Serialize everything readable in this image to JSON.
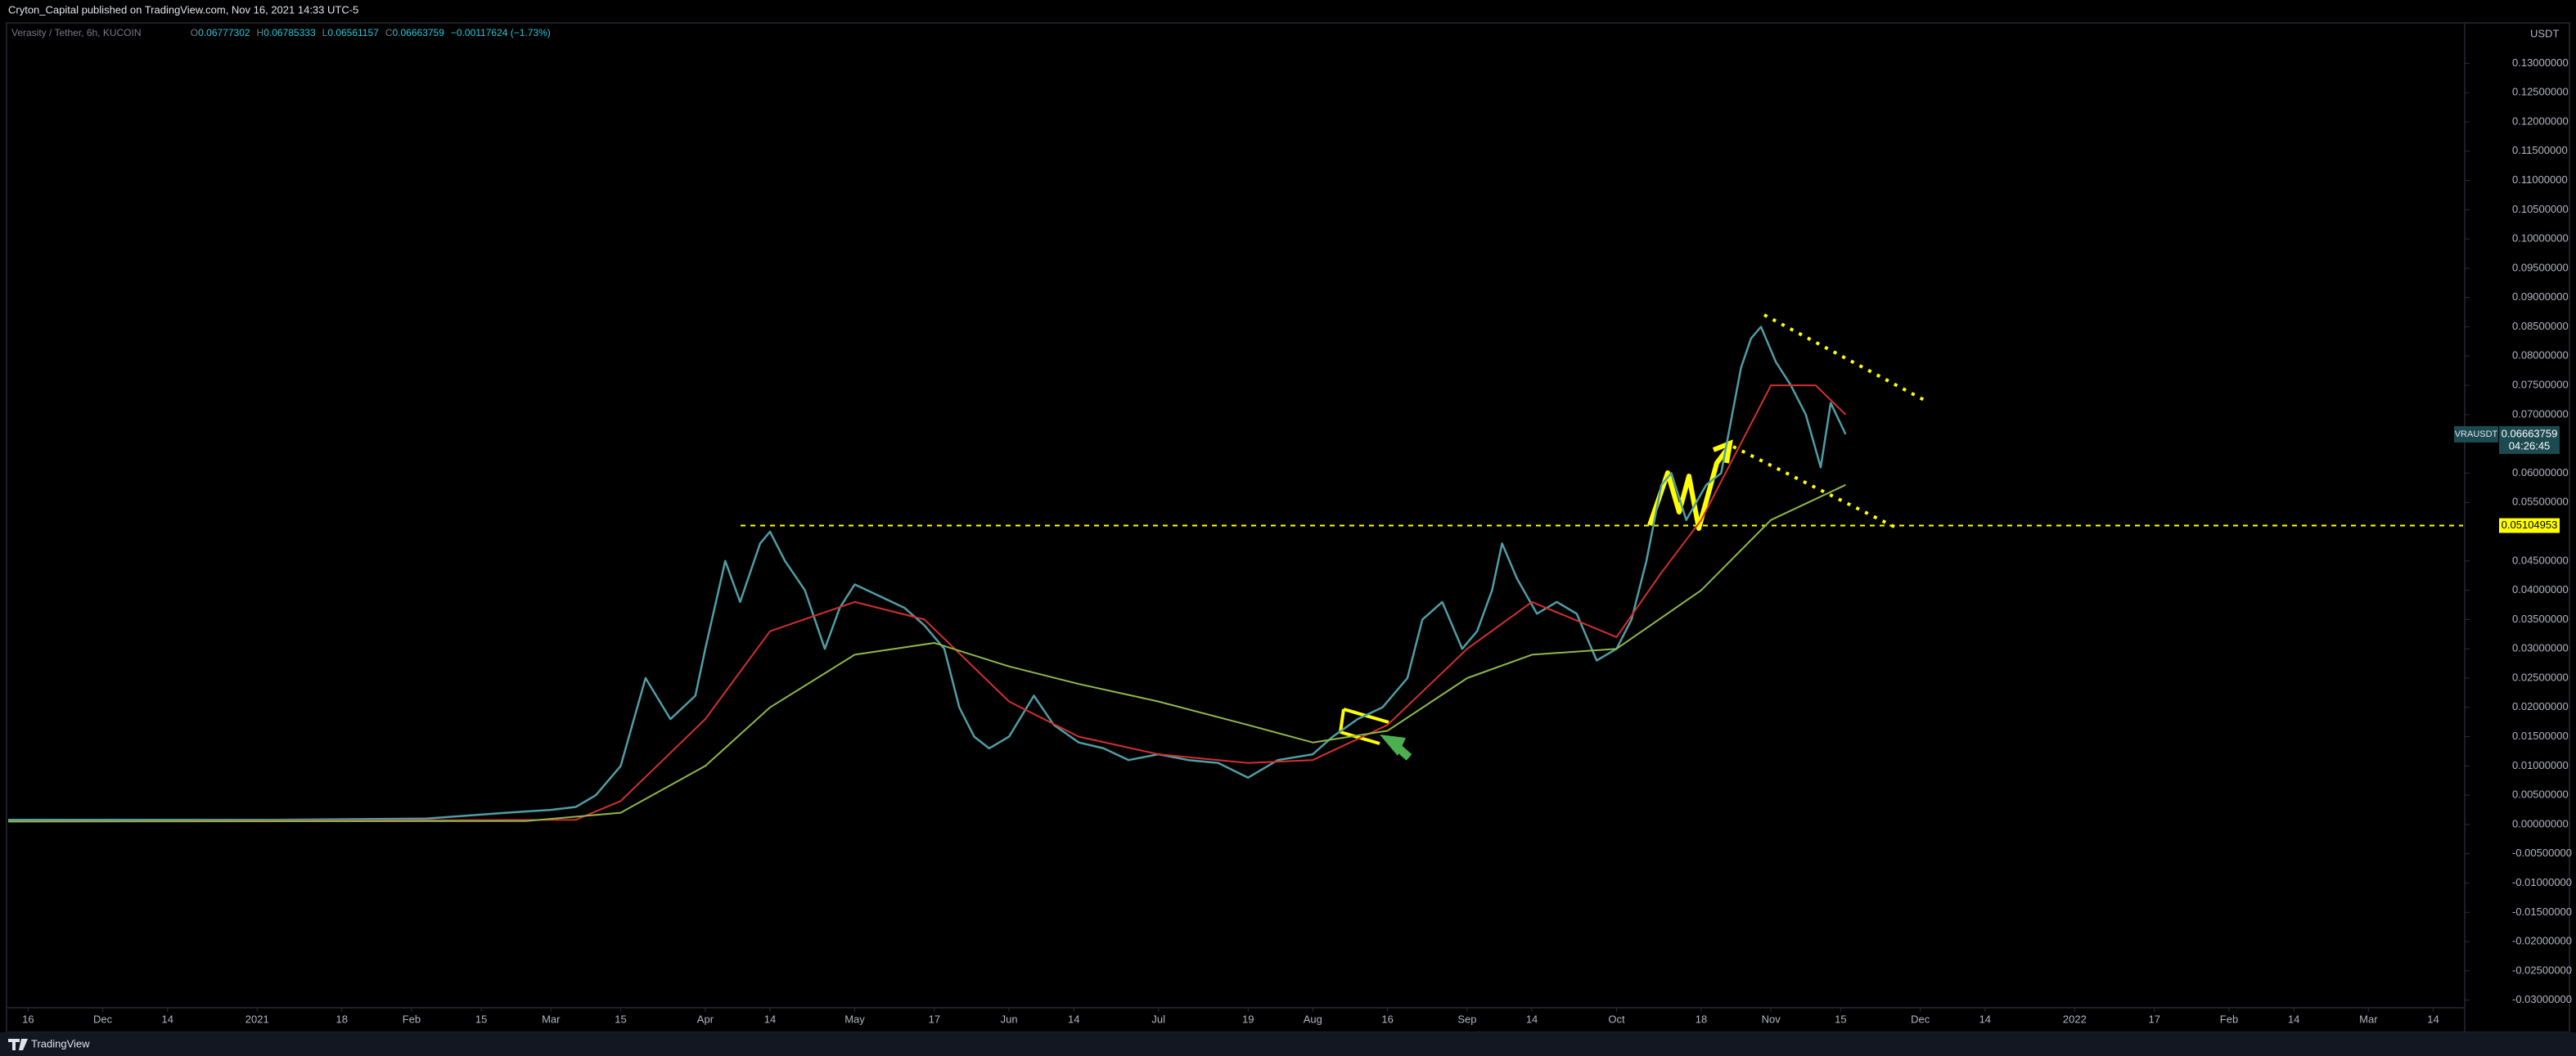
{
  "header": "Cryton_Capital published on TradingView.com, Nov 16, 2021 14:33 UTC-5",
  "footer": "TradingView",
  "chart_data": {
    "type": "line",
    "title": "Verasity / Tether, 6h, KUCOIN",
    "ohlc": [
      {
        "key": "O",
        "value": 0.06777302
      },
      {
        "key": "H",
        "value": 0.06785333
      },
      {
        "key": "L",
        "value": 0.06561157
      },
      {
        "key": "C",
        "value": 0.06663759
      }
    ],
    "change": "−0.00117624 (−1.73%)",
    "currency": "USDT",
    "symbol": "VRAUSDT",
    "last_price": 0.06663759,
    "countdown": "04:26:45",
    "level": 0.05104953,
    "level_color": "#ffff00",
    "xlim": [
      -4,
      489
    ],
    "ylim": [
      -0.0313,
      0.1369
    ],
    "grid": false,
    "xticks": [
      {
        "value": 0,
        "label": "16"
      },
      {
        "value": 15,
        "label": "Dec"
      },
      {
        "value": 28,
        "label": "14"
      },
      {
        "value": 46,
        "label": "2021"
      },
      {
        "value": 63,
        "label": "18"
      },
      {
        "value": 77,
        "label": "Feb"
      },
      {
        "value": 91,
        "label": "15"
      },
      {
        "value": 105,
        "label": "Mar"
      },
      {
        "value": 119,
        "label": "15"
      },
      {
        "value": 136,
        "label": "Apr"
      },
      {
        "value": 149,
        "label": "14"
      },
      {
        "value": 166,
        "label": "May"
      },
      {
        "value": 182,
        "label": "17"
      },
      {
        "value": 197,
        "label": "Jun"
      },
      {
        "value": 210,
        "label": "14"
      },
      {
        "value": 227,
        "label": "Jul"
      },
      {
        "value": 245,
        "label": "19"
      },
      {
        "value": 258,
        "label": "Aug"
      },
      {
        "value": 273,
        "label": "16"
      },
      {
        "value": 289,
        "label": "Sep"
      },
      {
        "value": 302,
        "label": "14"
      },
      {
        "value": 319,
        "label": "Oct"
      },
      {
        "value": 336,
        "label": "18"
      },
      {
        "value": 350,
        "label": "Nov"
      },
      {
        "value": 364,
        "label": "15"
      },
      {
        "value": 380,
        "label": "Dec"
      },
      {
        "value": 393,
        "label": "14"
      },
      {
        "value": 411,
        "label": "2022"
      },
      {
        "value": 427,
        "label": "17"
      },
      {
        "value": 442,
        "label": "Feb"
      },
      {
        "value": 455,
        "label": "14"
      },
      {
        "value": 470,
        "label": "Mar"
      },
      {
        "value": 483,
        "label": "14"
      }
    ],
    "yticks": [
      {
        "value": -0.03,
        "label": "-0.03000000"
      },
      {
        "value": -0.025,
        "label": "-0.02500000"
      },
      {
        "value": -0.02,
        "label": "-0.02000000"
      },
      {
        "value": -0.015,
        "label": "-0.01500000"
      },
      {
        "value": -0.01,
        "label": "-0.01000000"
      },
      {
        "value": -0.005,
        "label": "-0.00500000"
      },
      {
        "value": 0,
        "label": "0.00000000"
      },
      {
        "value": 0.005,
        "label": "0.00500000"
      },
      {
        "value": 0.01,
        "label": "0.01000000"
      },
      {
        "value": 0.015,
        "label": "0.01500000"
      },
      {
        "value": 0.02,
        "label": "0.02000000"
      },
      {
        "value": 0.025,
        "label": "0.02500000"
      },
      {
        "value": 0.03,
        "label": "0.03000000"
      },
      {
        "value": 0.035,
        "label": "0.03500000"
      },
      {
        "value": 0.04,
        "label": "0.04000000"
      },
      {
        "value": 0.045,
        "label": "0.04500000"
      },
      {
        "value": 0.055,
        "label": "0.05500000"
      },
      {
        "value": 0.06,
        "label": "0.06000000"
      },
      {
        "value": 0.07,
        "label": "0.07000000"
      },
      {
        "value": 0.075,
        "label": "0.07500000"
      },
      {
        "value": 0.08,
        "label": "0.08000000"
      },
      {
        "value": 0.085,
        "label": "0.08500000"
      },
      {
        "value": 0.09,
        "label": "0.09000000"
      },
      {
        "value": 0.095,
        "label": "0.09500000"
      },
      {
        "value": 0.1,
        "label": "0.10000000"
      },
      {
        "value": 0.105,
        "label": "0.10500000"
      },
      {
        "value": 0.11,
        "label": "0.11000000"
      },
      {
        "value": 0.115,
        "label": "0.11500000"
      },
      {
        "value": 0.12,
        "label": "0.12000000"
      },
      {
        "value": 0.125,
        "label": "0.12500000"
      },
      {
        "value": 0.13,
        "label": "0.13000000"
      }
    ],
    "series": [
      {
        "color": "#4f9ea6",
        "x": [
          -4,
          20,
          50,
          80,
          96,
          105,
          110,
          114,
          119,
          124,
          129,
          134,
          136,
          140,
          143,
          147,
          149,
          152,
          156,
          160,
          163,
          166,
          171,
          176,
          180,
          184,
          187,
          190,
          193,
          197,
          202,
          206,
          211,
          216,
          221,
          227,
          233,
          239,
          245,
          251,
          258,
          262,
          267,
          272,
          277,
          280,
          284,
          288,
          291,
          294,
          296,
          299,
          303,
          307,
          311,
          315,
          319,
          322,
          325,
          328,
          330,
          333,
          337,
          340,
          344,
          346,
          348,
          351,
          354,
          357,
          360,
          362,
          365
        ],
        "values": [
          0.0008,
          0.0008,
          0.0008,
          0.001,
          0.002,
          0.0025,
          0.003,
          0.005,
          0.01,
          0.025,
          0.018,
          0.022,
          0.03,
          0.045,
          0.038,
          0.048,
          0.05,
          0.045,
          0.04,
          0.03,
          0.037,
          0.041,
          0.039,
          0.037,
          0.034,
          0.03,
          0.02,
          0.015,
          0.013,
          0.015,
          0.022,
          0.017,
          0.014,
          0.013,
          0.011,
          0.012,
          0.011,
          0.0105,
          0.008,
          0.011,
          0.012,
          0.015,
          0.018,
          0.02,
          0.025,
          0.035,
          0.038,
          0.03,
          0.033,
          0.04,
          0.048,
          0.042,
          0.036,
          0.038,
          0.036,
          0.028,
          0.03,
          0.035,
          0.045,
          0.058,
          0.06,
          0.052,
          0.058,
          0.06,
          0.078,
          0.083,
          0.085,
          0.079,
          0.075,
          0.07,
          0.061,
          0.072,
          0.06663759
        ]
      },
      {
        "color": "#d32f2f",
        "x": [
          -4,
          110,
          119,
          136,
          149,
          166,
          180,
          197,
          211,
          227,
          245,
          258,
          273,
          289,
          302,
          319,
          328,
          336,
          350,
          359,
          365
        ],
        "values": [
          0.0005,
          0.0008,
          0.004,
          0.018,
          0.033,
          0.038,
          0.035,
          0.021,
          0.015,
          0.012,
          0.0105,
          0.011,
          0.017,
          0.03,
          0.038,
          0.032,
          0.043,
          0.052,
          0.075,
          0.075,
          0.07
        ]
      },
      {
        "color": "#8fb84a",
        "x": [
          -4,
          100,
          119,
          136,
          149,
          166,
          182,
          197,
          211,
          227,
          245,
          258,
          273,
          289,
          302,
          319,
          336,
          350,
          365
        ],
        "values": [
          0.0005,
          0.0006,
          0.002,
          0.01,
          0.02,
          0.029,
          0.031,
          0.027,
          0.024,
          0.021,
          0.017,
          0.014,
          0.016,
          0.025,
          0.029,
          0.03,
          0.04,
          0.052,
          0.058
        ]
      }
    ]
  }
}
